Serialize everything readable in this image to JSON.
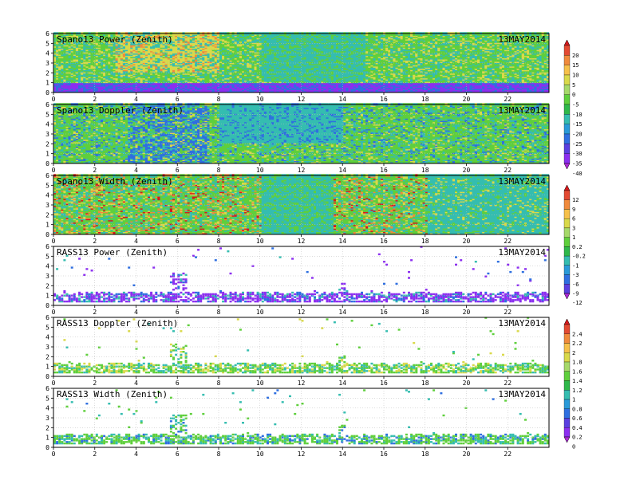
{
  "chart_data": [
    {
      "type": "heatmap",
      "title": "Spano13 Power (Zenith)",
      "date": "13MAY2014",
      "xlim": [
        0,
        24
      ],
      "ylim": [
        0,
        6
      ],
      "x_ticks": [
        "0",
        "2",
        "4",
        "6",
        "8",
        "10",
        "12",
        "14",
        "16",
        "18",
        "20",
        "22"
      ],
      "y_ticks": [
        "0",
        "1",
        "2",
        "3",
        "4",
        "5",
        "6"
      ],
      "colorbar": "cb1",
      "grid": true
    },
    {
      "type": "heatmap",
      "title": "Spano13 Doppler (Zenith)",
      "date": "13MAY2014",
      "xlim": [
        0,
        24
      ],
      "ylim": [
        0,
        6
      ],
      "x_ticks": [
        "0",
        "2",
        "4",
        "6",
        "8",
        "10",
        "12",
        "14",
        "16",
        "18",
        "20",
        "22"
      ],
      "y_ticks": [
        "0",
        "1",
        "2",
        "3",
        "4",
        "5",
        "6"
      ],
      "colorbar": "cb1",
      "grid": true
    },
    {
      "type": "heatmap",
      "title": "Spano13 Width (Zenith)",
      "date": "13MAY2014",
      "xlim": [
        0,
        24
      ],
      "ylim": [
        0,
        6
      ],
      "x_ticks": [
        "0",
        "2",
        "4",
        "6",
        "8",
        "10",
        "12",
        "14",
        "16",
        "18",
        "20",
        "22"
      ],
      "y_ticks": [
        "0",
        "1",
        "2",
        "3",
        "4",
        "5",
        "6"
      ],
      "colorbar": "cb2",
      "grid": true
    },
    {
      "type": "heatmap",
      "title": "RASS13 Power (Zenith)",
      "date": "13MAY2014",
      "xlim": [
        0,
        24
      ],
      "ylim": [
        0,
        6
      ],
      "x_ticks": [
        "0",
        "2",
        "4",
        "6",
        "8",
        "10",
        "12",
        "14",
        "16",
        "18",
        "20",
        "22"
      ],
      "y_ticks": [
        "0",
        "1",
        "2",
        "3",
        "4",
        "5",
        "6"
      ],
      "colorbar": "cb2",
      "grid": true
    },
    {
      "type": "heatmap",
      "title": "RASS13 Doppler (Zenith)",
      "date": "13MAY2014",
      "xlim": [
        0,
        24
      ],
      "ylim": [
        0,
        6
      ],
      "x_ticks": [
        "0",
        "2",
        "4",
        "6",
        "8",
        "10",
        "12",
        "14",
        "16",
        "18",
        "20",
        "22"
      ],
      "y_ticks": [
        "0",
        "1",
        "2",
        "3",
        "4",
        "5",
        "6"
      ],
      "colorbar": "cb3",
      "grid": true
    },
    {
      "type": "heatmap",
      "title": "RASS13 Width (Zenith)",
      "date": "13MAY2014",
      "xlim": [
        0,
        24
      ],
      "ylim": [
        0,
        6
      ],
      "x_ticks": [
        "0",
        "2",
        "4",
        "6",
        "8",
        "10",
        "12",
        "14",
        "16",
        "18",
        "20",
        "22"
      ],
      "y_ticks": [
        "0",
        "1",
        "2",
        "3",
        "4",
        "5",
        "6"
      ],
      "colorbar": "cb3",
      "grid": true
    }
  ],
  "colorbars": {
    "cb1": {
      "labels": [
        "20",
        "15",
        "10",
        "5",
        "0",
        "-5",
        "-10",
        "-15",
        "-20",
        "-25",
        "-30",
        "-35",
        "-40"
      ],
      "colors": [
        "#d7191c",
        "#e34a33",
        "#f08a3c",
        "#f6c04a",
        "#d9d94a",
        "#a6d96a",
        "#5fcf3c",
        "#2fb84a",
        "#35bdb0",
        "#2a9ad8",
        "#2f6fe0",
        "#5a3fe0",
        "#8c2ff0",
        "#b02ad8"
      ]
    },
    "cb2": {
      "labels": [
        "12",
        "9",
        "6",
        "3",
        "1",
        "0.2",
        "-0.2",
        "-1",
        "-3",
        "-6",
        "-9",
        "-12"
      ],
      "colors": [
        "#d7191c",
        "#e34a33",
        "#f08a3c",
        "#f6c04a",
        "#d9d94a",
        "#a6d96a",
        "#5fcf3c",
        "#2fb84a",
        "#35bdb0",
        "#2a9ad8",
        "#2f6fe0",
        "#5a3fe0",
        "#b02ad8"
      ]
    },
    "cb3": {
      "labels": [
        "2.4",
        "2.2",
        "2",
        "1.8",
        "1.6",
        "1.4",
        "1.2",
        "1",
        "0.8",
        "0.6",
        "0.4",
        "0.2",
        "0"
      ],
      "colors": [
        "#d7191c",
        "#e34a33",
        "#f08a3c",
        "#f6c04a",
        "#d9d94a",
        "#a6d96a",
        "#5fcf3c",
        "#2fb84a",
        "#35bdb0",
        "#2a9ad8",
        "#2f6fe0",
        "#5a3fe0",
        "#8c2ff0",
        "#b02ad8"
      ]
    }
  },
  "palette": {
    "background_dense": "#2fbf8a",
    "green": "#5fcf3c",
    "cyan": "#35bdb0",
    "yellow": "#d9d94a",
    "orange": "#f08a3c",
    "red": "#d7191c",
    "blue": "#2f6fe0",
    "purple": "#8c2ff0"
  }
}
